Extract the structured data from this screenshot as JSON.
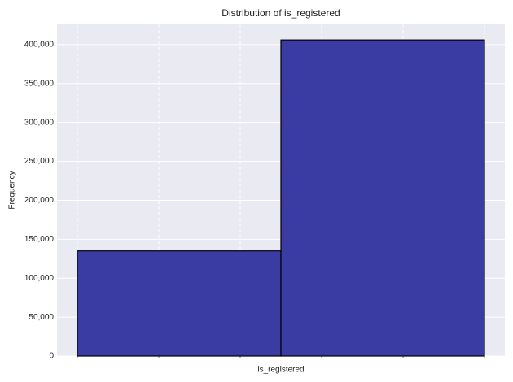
{
  "chart_data": {
    "type": "histogram",
    "title": "Distribution of is_registered",
    "x_label": "is_registered",
    "y_label": "Frequency",
    "bins": [
      0,
      0.5,
      1
    ],
    "values": [
      135000,
      406000
    ],
    "color": "#3a3ba3",
    "xlim": [
      -0.05,
      1.05
    ],
    "xticks": [
      0,
      0.2,
      0.4,
      0.6,
      0.8,
      1.0
    ],
    "ylim": [
      0,
      426000
    ],
    "yticks": [
      0,
      {
        "value": 50000,
        "label": "50,000"
      },
      {
        "value": 100000,
        "label": "100,000"
      },
      {
        "value": 150000,
        "label": "150,000"
      },
      {
        "value": 200000,
        "label": "200,000"
      },
      {
        "value": 250000,
        "label": "250,000"
      },
      {
        "value": 300000,
        "label": "300,000"
      },
      {
        "value": 350000,
        "label": "350,000"
      },
      {
        "value": 400000,
        "label": "400,000"
      }
    ],
    "grid": true
  }
}
